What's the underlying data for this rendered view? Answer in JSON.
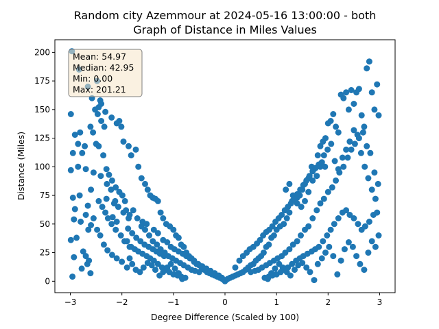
{
  "chart_data": {
    "type": "scatter",
    "title_line1": "Random city Azemmour at 2024-05-16 13:00:00  - both",
    "title_line2": "Graph of Distance in Miles Values",
    "xlabel": "Degree Difference (Scaled by 100)",
    "ylabel": "Distance (Miles)",
    "xlim": [
      -3.3,
      3.3
    ],
    "ylim": [
      -10,
      211
    ],
    "xticks": [
      -3,
      -2,
      -1,
      0,
      1,
      2,
      3
    ],
    "yticks": [
      0,
      25,
      50,
      75,
      100,
      125,
      150,
      175,
      200
    ],
    "grid": false,
    "point_color": "#1f77b4",
    "stats_box": {
      "mean": "Mean: 54.97",
      "median": "Median: 42.95",
      "min": "Min: 0.00",
      "max": "Max: 201.21",
      "fill": "#f5e6c8",
      "placement": "top-left"
    },
    "points": [
      [
        -2.97,
        201
      ],
      [
        -2.83,
        185
      ],
      [
        -2.66,
        170
      ],
      [
        -2.48,
        175
      ],
      [
        -2.42,
        158
      ],
      [
        -2.45,
        152
      ],
      [
        -2.99,
        146
      ],
      [
        -2.95,
        112
      ],
      [
        -2.91,
        128
      ],
      [
        -2.85,
        120
      ],
      [
        -2.72,
        118
      ],
      [
        -2.77,
        112
      ],
      [
        -2.99,
        97
      ],
      [
        -2.85,
        100
      ],
      [
        -2.7,
        98
      ],
      [
        -2.95,
        73
      ],
      [
        -2.82,
        75
      ],
      [
        -2.91,
        63
      ],
      [
        -2.93,
        54
      ],
      [
        -2.8,
        52
      ],
      [
        -2.66,
        66
      ],
      [
        -2.7,
        58
      ],
      [
        -2.65,
        45
      ],
      [
        -2.6,
        49
      ],
      [
        -2.99,
        36
      ],
      [
        -2.88,
        38
      ],
      [
        -2.75,
        26
      ],
      [
        -2.7,
        22
      ],
      [
        -2.67,
        15
      ],
      [
        -2.64,
        18
      ],
      [
        -2.96,
        4
      ],
      [
        -2.93,
        21
      ],
      [
        -2.78,
        11
      ],
      [
        -2.61,
        7
      ],
      [
        -2.81,
        130
      ],
      [
        -2.61,
        135
      ],
      [
        -2.52,
        150
      ],
      [
        -2.47,
        146
      ],
      [
        -2.4,
        140
      ],
      [
        -2.34,
        135
      ],
      [
        -2.56,
        130
      ],
      [
        -2.5,
        120
      ],
      [
        -2.45,
        118
      ],
      [
        -2.36,
        110
      ],
      [
        -2.3,
        98
      ],
      [
        -2.25,
        93
      ],
      [
        -2.19,
        88
      ],
      [
        -2.12,
        82
      ],
      [
        -2.05,
        78
      ],
      [
        -1.99,
        75
      ],
      [
        -1.94,
        70
      ],
      [
        -2.55,
        95
      ],
      [
        -2.41,
        92
      ],
      [
        -2.29,
        85
      ],
      [
        -2.21,
        80
      ],
      [
        -2.13,
        70
      ],
      [
        -2.07,
        65
      ],
      [
        -1.97,
        60
      ],
      [
        -1.87,
        55
      ],
      [
        -2.6,
        80
      ],
      [
        -2.45,
        70
      ],
      [
        -2.38,
        65
      ],
      [
        -2.32,
        60
      ],
      [
        -2.27,
        55
      ],
      [
        -2.2,
        50
      ],
      [
        -2.12,
        45
      ],
      [
        -2.02,
        40
      ],
      [
        -1.95,
        35
      ],
      [
        -1.85,
        30
      ],
      [
        -2.55,
        55
      ],
      [
        -2.48,
        45
      ],
      [
        -2.42,
        40
      ],
      [
        -2.35,
        32
      ],
      [
        -2.28,
        27
      ],
      [
        -2.19,
        23
      ],
      [
        -2.1,
        20
      ],
      [
        -2.0,
        17
      ],
      [
        -1.9,
        12
      ],
      [
        -2.05,
        140
      ],
      [
        -2.01,
        135
      ],
      [
        -1.97,
        122
      ],
      [
        -1.87,
        118
      ],
      [
        -1.82,
        110
      ],
      [
        -1.73,
        115
      ],
      [
        -1.68,
        100
      ],
      [
        -1.62,
        90
      ],
      [
        -1.55,
        85
      ],
      [
        -1.5,
        80
      ],
      [
        -1.45,
        75
      ],
      [
        -1.4,
        73
      ],
      [
        -1.35,
        72
      ],
      [
        -1.3,
        70
      ],
      [
        -1.25,
        60
      ],
      [
        -1.2,
        55
      ],
      [
        -1.14,
        50
      ],
      [
        -1.07,
        48
      ],
      [
        -1.0,
        45
      ],
      [
        -0.95,
        40
      ],
      [
        -0.9,
        38
      ],
      [
        -0.85,
        32
      ],
      [
        -0.8,
        30
      ],
      [
        -0.75,
        25
      ],
      [
        -0.7,
        22
      ],
      [
        -0.65,
        20
      ],
      [
        -0.6,
        18
      ],
      [
        -0.55,
        15
      ],
      [
        -0.5,
        14
      ],
      [
        -0.45,
        12
      ],
      [
        -0.4,
        10
      ],
      [
        -0.35,
        8
      ],
      [
        -0.3,
        7
      ],
      [
        -0.25,
        6
      ],
      [
        -0.2,
        5
      ],
      [
        -0.15,
        4
      ],
      [
        -0.1,
        3
      ],
      [
        -0.05,
        2
      ],
      [
        0.0,
        0
      ],
      [
        -1.78,
        62
      ],
      [
        -1.7,
        55
      ],
      [
        -1.62,
        48
      ],
      [
        -1.55,
        45
      ],
      [
        -1.47,
        40
      ],
      [
        -1.4,
        35
      ],
      [
        -1.32,
        32
      ],
      [
        -1.25,
        28
      ],
      [
        -1.17,
        25
      ],
      [
        -1.1,
        22
      ],
      [
        -1.02,
        20
      ],
      [
        -0.95,
        18
      ],
      [
        -0.87,
        16
      ],
      [
        -0.8,
        14
      ],
      [
        -0.72,
        12
      ],
      [
        -0.65,
        10
      ],
      [
        -0.58,
        9
      ],
      [
        -0.5,
        8
      ],
      [
        -1.9,
        35
      ],
      [
        -1.82,
        30
      ],
      [
        -1.75,
        28
      ],
      [
        -1.68,
        26
      ],
      [
        -1.6,
        24
      ],
      [
        -1.52,
        22
      ],
      [
        -1.45,
        20
      ],
      [
        -1.38,
        18
      ],
      [
        -1.3,
        15
      ],
      [
        -1.22,
        12
      ],
      [
        -1.15,
        10
      ],
      [
        -1.08,
        8
      ],
      [
        -1.0,
        6
      ],
      [
        -0.92,
        5
      ],
      [
        -0.85,
        4
      ],
      [
        -0.77,
        3
      ],
      [
        -1.85,
        20
      ],
      [
        -1.8,
        15
      ],
      [
        -1.73,
        10
      ],
      [
        -1.65,
        8
      ],
      [
        -1.58,
        12
      ],
      [
        -1.5,
        16
      ],
      [
        -1.42,
        14
      ],
      [
        -1.35,
        10
      ],
      [
        -1.27,
        5
      ],
      [
        -1.2,
        8
      ],
      [
        -1.12,
        12
      ],
      [
        -1.05,
        15
      ],
      [
        -0.97,
        11
      ],
      [
        -0.9,
        7
      ],
      [
        -0.83,
        2
      ],
      [
        -2.18,
        56
      ],
      [
        -2.1,
        52
      ],
      [
        -1.88,
        46
      ],
      [
        -1.8,
        42
      ],
      [
        -1.72,
        38
      ],
      [
        -1.64,
        35
      ],
      [
        -1.56,
        32
      ],
      [
        -1.48,
        30
      ],
      [
        -1.4,
        28
      ],
      [
        -1.33,
        26
      ],
      [
        -1.26,
        24
      ],
      [
        -1.18,
        22
      ],
      [
        -2.3,
        72
      ],
      [
        -2.15,
        68
      ],
      [
        -1.92,
        62
      ],
      [
        -1.85,
        58
      ],
      [
        -1.6,
        52
      ],
      [
        -1.52,
        50
      ],
      [
        -1.38,
        45
      ],
      [
        -1.3,
        42
      ],
      [
        -1.2,
        36
      ],
      [
        -1.12,
        34
      ],
      [
        -1.05,
        30
      ],
      [
        -0.98,
        28
      ],
      [
        -0.9,
        26
      ],
      [
        -0.82,
        24
      ],
      [
        -0.75,
        22
      ],
      [
        -0.68,
        20
      ],
      [
        -0.6,
        17
      ],
      [
        -0.52,
        15
      ],
      [
        -0.44,
        13
      ],
      [
        -0.36,
        11
      ],
      [
        -0.28,
        9
      ],
      [
        -0.2,
        7
      ],
      [
        -0.12,
        5
      ],
      [
        -0.06,
        3
      ],
      [
        -2.58,
        160
      ],
      [
        -2.4,
        155
      ],
      [
        -2.32,
        148
      ],
      [
        -2.2,
        143
      ],
      [
        -2.1,
        138
      ],
      [
        -0.02,
        1
      ],
      [
        0.02,
        1
      ],
      [
        0.05,
        2
      ],
      [
        0.1,
        3
      ],
      [
        0.15,
        4
      ],
      [
        0.2,
        5
      ],
      [
        0.25,
        6
      ],
      [
        0.3,
        7
      ],
      [
        0.35,
        8
      ],
      [
        0.4,
        10
      ],
      [
        0.45,
        12
      ],
      [
        0.5,
        14
      ],
      [
        0.55,
        15
      ],
      [
        0.6,
        18
      ],
      [
        0.65,
        20
      ],
      [
        0.7,
        22
      ],
      [
        0.75,
        25
      ],
      [
        0.8,
        30
      ],
      [
        0.85,
        32
      ],
      [
        0.9,
        38
      ],
      [
        0.95,
        40
      ],
      [
        1.0,
        45
      ],
      [
        1.07,
        48
      ],
      [
        1.14,
        50
      ],
      [
        1.2,
        55
      ],
      [
        1.25,
        60
      ],
      [
        1.3,
        70
      ],
      [
        1.35,
        72
      ],
      [
        1.4,
        73
      ],
      [
        1.45,
        75
      ],
      [
        1.5,
        80
      ],
      [
        1.55,
        85
      ],
      [
        1.62,
        90
      ],
      [
        1.68,
        100
      ],
      [
        1.73,
        98
      ],
      [
        1.8,
        110
      ],
      [
        1.85,
        118
      ],
      [
        1.9,
        122
      ],
      [
        1.95,
        125
      ],
      [
        2.0,
        138
      ],
      [
        2.05,
        140
      ],
      [
        2.1,
        146
      ],
      [
        2.15,
        135
      ],
      [
        2.2,
        130
      ],
      [
        2.25,
        163
      ],
      [
        2.3,
        160
      ],
      [
        2.35,
        165
      ],
      [
        2.4,
        150
      ],
      [
        2.45,
        167
      ],
      [
        2.5,
        155
      ],
      [
        2.55,
        165
      ],
      [
        2.6,
        168
      ],
      [
        2.65,
        145
      ],
      [
        2.7,
        135
      ],
      [
        2.75,
        186
      ],
      [
        2.8,
        192
      ],
      [
        2.85,
        165
      ],
      [
        2.9,
        150
      ],
      [
        2.95,
        172
      ],
      [
        2.98,
        145
      ],
      [
        0.5,
        8
      ],
      [
        0.58,
        9
      ],
      [
        0.65,
        10
      ],
      [
        0.72,
        12
      ],
      [
        0.8,
        14
      ],
      [
        0.87,
        16
      ],
      [
        0.95,
        18
      ],
      [
        1.02,
        20
      ],
      [
        1.1,
        22
      ],
      [
        1.17,
        25
      ],
      [
        1.25,
        28
      ],
      [
        1.32,
        32
      ],
      [
        1.4,
        35
      ],
      [
        1.47,
        40
      ],
      [
        1.55,
        45
      ],
      [
        1.62,
        48
      ],
      [
        1.7,
        55
      ],
      [
        1.78,
        62
      ],
      [
        1.85,
        68
      ],
      [
        1.92,
        72
      ],
      [
        2.0,
        78
      ],
      [
        2.08,
        82
      ],
      [
        2.15,
        88
      ],
      [
        2.22,
        95
      ],
      [
        2.3,
        100
      ],
      [
        2.38,
        108
      ],
      [
        2.45,
        115
      ],
      [
        2.52,
        120
      ],
      [
        2.6,
        125
      ],
      [
        2.68,
        130
      ],
      [
        2.75,
        118
      ],
      [
        2.82,
        112
      ],
      [
        2.9,
        95
      ],
      [
        2.97,
        85
      ],
      [
        0.77,
        3
      ],
      [
        0.85,
        4
      ],
      [
        0.92,
        5
      ],
      [
        1.0,
        6
      ],
      [
        1.08,
        8
      ],
      [
        1.15,
        10
      ],
      [
        1.22,
        12
      ],
      [
        1.3,
        15
      ],
      [
        1.38,
        18
      ],
      [
        1.45,
        20
      ],
      [
        1.52,
        22
      ],
      [
        1.6,
        24
      ],
      [
        1.68,
        26
      ],
      [
        1.75,
        28
      ],
      [
        1.82,
        30
      ],
      [
        1.9,
        35
      ],
      [
        1.98,
        40
      ],
      [
        2.05,
        45
      ],
      [
        2.12,
        50
      ],
      [
        2.2,
        55
      ],
      [
        2.28,
        60
      ],
      [
        2.35,
        62
      ],
      [
        2.42,
        58
      ],
      [
        2.5,
        55
      ],
      [
        2.58,
        50
      ],
      [
        2.65,
        45
      ],
      [
        2.72,
        48
      ],
      [
        2.8,
        52
      ],
      [
        2.88,
        58
      ],
      [
        2.95,
        60
      ],
      [
        0.83,
        2
      ],
      [
        0.9,
        7
      ],
      [
        0.97,
        11
      ],
      [
        1.05,
        15
      ],
      [
        1.12,
        12
      ],
      [
        1.2,
        8
      ],
      [
        1.27,
        5
      ],
      [
        1.35,
        10
      ],
      [
        1.42,
        14
      ],
      [
        1.5,
        16
      ],
      [
        1.58,
        12
      ],
      [
        1.65,
        8
      ],
      [
        1.73,
        1
      ],
      [
        1.8,
        15
      ],
      [
        1.88,
        20
      ],
      [
        1.95,
        25
      ],
      [
        2.02,
        30
      ],
      [
        2.1,
        22
      ],
      [
        2.18,
        6
      ],
      [
        2.25,
        18
      ],
      [
        2.32,
        28
      ],
      [
        2.4,
        34
      ],
      [
        2.48,
        30
      ],
      [
        2.55,
        22
      ],
      [
        2.62,
        15
      ],
      [
        2.7,
        10
      ],
      [
        2.78,
        25
      ],
      [
        2.85,
        35
      ],
      [
        2.92,
        30
      ],
      [
        2.98,
        40
      ],
      [
        1.18,
        80
      ],
      [
        1.25,
        85
      ],
      [
        1.32,
        75
      ],
      [
        1.4,
        68
      ],
      [
        1.48,
        65
      ],
      [
        1.55,
        70
      ],
      [
        1.62,
        78
      ],
      [
        1.7,
        88
      ],
      [
        1.78,
        92
      ],
      [
        1.85,
        100
      ],
      [
        1.92,
        110
      ],
      [
        1.99,
        115
      ],
      [
        2.06,
        120
      ],
      [
        2.13,
        105
      ],
      [
        2.2,
        98
      ],
      [
        2.28,
        108
      ],
      [
        2.35,
        115
      ],
      [
        2.42,
        122
      ],
      [
        2.5,
        132
      ],
      [
        2.57,
        128
      ],
      [
        2.64,
        112
      ],
      [
        2.71,
        100
      ],
      [
        2.78,
        90
      ],
      [
        2.85,
        80
      ],
      [
        2.92,
        72
      ],
      [
        0.2,
        12
      ],
      [
        0.28,
        18
      ],
      [
        0.35,
        22
      ],
      [
        0.42,
        25
      ],
      [
        0.48,
        28
      ],
      [
        0.55,
        30
      ],
      [
        0.62,
        33
      ],
      [
        0.68,
        36
      ],
      [
        0.74,
        40
      ],
      [
        0.8,
        43
      ],
      [
        0.86,
        45
      ],
      [
        0.92,
        48
      ],
      [
        0.98,
        52
      ],
      [
        1.04,
        55
      ],
      [
        1.1,
        58
      ],
      [
        1.16,
        62
      ],
      [
        1.22,
        65
      ],
      [
        1.28,
        68
      ],
      [
        1.34,
        72
      ],
      [
        1.4,
        76
      ],
      [
        1.46,
        80
      ],
      [
        1.52,
        84
      ],
      [
        1.58,
        88
      ],
      [
        1.64,
        92
      ],
      [
        1.7,
        96
      ],
      [
        1.76,
        99
      ],
      [
        1.82,
        102
      ],
      [
        1.88,
        104
      ],
      [
        1.94,
        100
      ]
    ]
  }
}
